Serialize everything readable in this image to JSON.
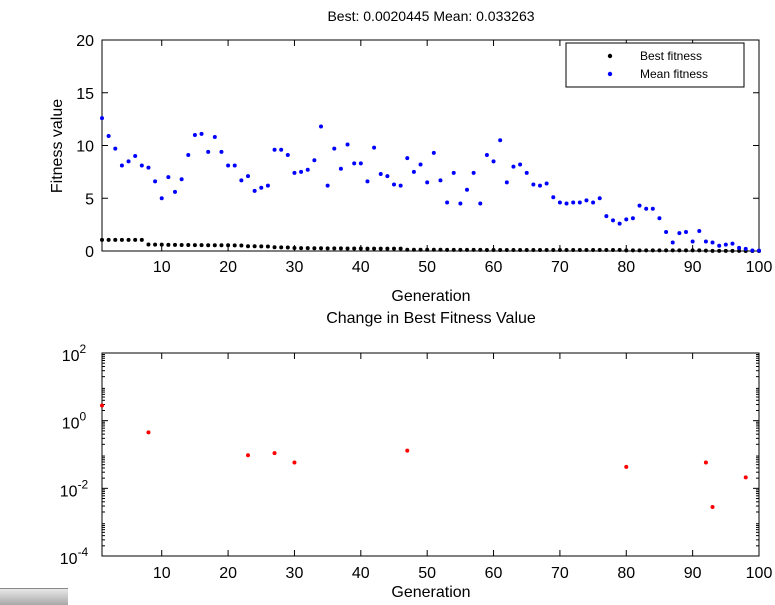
{
  "chart_data": [
    {
      "type": "scatter",
      "title": "Best: 0.0020445 Mean: 0.033263",
      "xlabel": "Generation",
      "ylabel": "Fitness value",
      "xlim": [
        1,
        100
      ],
      "ylim": [
        0,
        20
      ],
      "xticks": [
        10,
        20,
        30,
        40,
        50,
        60,
        70,
        80,
        90,
        100
      ],
      "yticks": [
        0,
        5,
        10,
        15,
        20
      ],
      "grid": false,
      "legend": "top-right",
      "series": [
        {
          "name": "Best fitness",
          "color": "#000000",
          "x": [
            1,
            2,
            3,
            4,
            5,
            6,
            7,
            8,
            9,
            10,
            11,
            12,
            13,
            14,
            15,
            16,
            17,
            18,
            19,
            20,
            21,
            22,
            23,
            24,
            25,
            26,
            27,
            28,
            29,
            30,
            31,
            32,
            33,
            34,
            35,
            36,
            37,
            38,
            39,
            40,
            41,
            42,
            43,
            44,
            45,
            46,
            47,
            48,
            49,
            50,
            51,
            52,
            53,
            54,
            55,
            56,
            57,
            58,
            59,
            60,
            61,
            62,
            63,
            64,
            65,
            66,
            67,
            68,
            69,
            70,
            71,
            72,
            73,
            74,
            75,
            76,
            77,
            78,
            79,
            80,
            81,
            82,
            83,
            84,
            85,
            86,
            87,
            88,
            89,
            90,
            91,
            92,
            93,
            94,
            95,
            96,
            97,
            98,
            99,
            100
          ],
          "values": [
            1.05,
            1.05,
            1.05,
            1.05,
            1.05,
            1.05,
            1.05,
            0.62,
            0.6,
            0.6,
            0.58,
            0.58,
            0.57,
            0.57,
            0.56,
            0.56,
            0.55,
            0.55,
            0.55,
            0.54,
            0.53,
            0.52,
            0.45,
            0.45,
            0.44,
            0.43,
            0.35,
            0.34,
            0.33,
            0.28,
            0.27,
            0.27,
            0.26,
            0.26,
            0.25,
            0.25,
            0.25,
            0.24,
            0.24,
            0.24,
            0.23,
            0.23,
            0.23,
            0.22,
            0.22,
            0.22,
            0.12,
            0.12,
            0.12,
            0.12,
            0.12,
            0.12,
            0.11,
            0.11,
            0.11,
            0.11,
            0.11,
            0.11,
            0.1,
            0.1,
            0.1,
            0.1,
            0.1,
            0.1,
            0.1,
            0.1,
            0.1,
            0.1,
            0.1,
            0.1,
            0.1,
            0.1,
            0.1,
            0.1,
            0.1,
            0.1,
            0.1,
            0.1,
            0.1,
            0.06,
            0.06,
            0.06,
            0.06,
            0.06,
            0.06,
            0.06,
            0.06,
            0.06,
            0.06,
            0.06,
            0.06,
            0.03,
            0.01,
            0.01,
            0.01,
            0.01,
            0.01,
            0.002,
            0.002,
            0.002
          ]
        },
        {
          "name": "Mean fitness",
          "color": "#0000ff",
          "x": [
            1,
            2,
            3,
            4,
            5,
            6,
            7,
            8,
            9,
            10,
            11,
            12,
            13,
            14,
            15,
            16,
            17,
            18,
            19,
            20,
            21,
            22,
            23,
            24,
            25,
            26,
            27,
            28,
            29,
            30,
            31,
            32,
            33,
            34,
            35,
            36,
            37,
            38,
            39,
            40,
            41,
            42,
            43,
            44,
            45,
            46,
            47,
            48,
            49,
            50,
            51,
            52,
            53,
            54,
            55,
            56,
            57,
            58,
            59,
            60,
            61,
            62,
            63,
            64,
            65,
            66,
            67,
            68,
            69,
            70,
            71,
            72,
            73,
            74,
            75,
            76,
            77,
            78,
            79,
            80,
            81,
            82,
            83,
            84,
            85,
            86,
            87,
            88,
            89,
            90,
            91,
            92,
            93,
            94,
            95,
            96,
            97,
            98,
            99,
            100
          ],
          "values": [
            12.6,
            10.9,
            9.7,
            8.1,
            8.5,
            9.0,
            8.1,
            7.9,
            6.6,
            5.0,
            7.0,
            5.6,
            6.8,
            9.1,
            11.0,
            11.1,
            9.4,
            10.8,
            9.4,
            8.1,
            8.1,
            6.7,
            7.1,
            5.7,
            6.0,
            6.2,
            9.6,
            9.6,
            9.1,
            7.4,
            7.5,
            7.7,
            8.6,
            11.8,
            6.2,
            9.7,
            7.8,
            10.1,
            8.3,
            8.3,
            6.6,
            9.8,
            7.3,
            7.1,
            6.3,
            6.2,
            8.8,
            7.5,
            8.2,
            6.5,
            9.3,
            6.7,
            4.6,
            7.4,
            4.5,
            5.8,
            7.4,
            4.5,
            9.1,
            8.5,
            10.5,
            6.5,
            8.0,
            8.2,
            7.4,
            6.3,
            6.2,
            6.4,
            5.1,
            4.6,
            4.5,
            4.6,
            4.6,
            4.8,
            4.6,
            5.0,
            3.3,
            2.9,
            2.6,
            3.0,
            3.1,
            4.3,
            4.0,
            4.0,
            3.1,
            1.8,
            0.8,
            1.7,
            1.8,
            0.9,
            1.9,
            0.9,
            0.8,
            0.5,
            0.6,
            0.7,
            0.3,
            0.2,
            0.05,
            0.03
          ]
        }
      ]
    },
    {
      "type": "scatter",
      "title": "Change in Best Fitness Value",
      "xlabel": "Generation",
      "ylabel": "",
      "yscale": "log",
      "xlim": [
        1,
        100
      ],
      "ylim": [
        0.0001,
        100
      ],
      "xticks": [
        10,
        20,
        30,
        40,
        50,
        60,
        70,
        80,
        90,
        100
      ],
      "yticks": [
        {
          "base": "10",
          "exp": "-4",
          "value": 0.0001
        },
        {
          "base": "10",
          "exp": "-2",
          "value": 0.01
        },
        {
          "base": "10",
          "exp": "0",
          "value": 1
        },
        {
          "base": "10",
          "exp": "2",
          "value": 100
        }
      ],
      "grid": false,
      "series": [
        {
          "color": "#ff0000",
          "x": [
            1,
            8,
            23,
            27,
            30,
            47,
            80,
            92,
            93,
            98
          ],
          "values": [
            2.8,
            0.45,
            0.095,
            0.11,
            0.058,
            0.13,
            0.043,
            0.058,
            0.0028,
            0.021
          ]
        }
      ]
    }
  ]
}
